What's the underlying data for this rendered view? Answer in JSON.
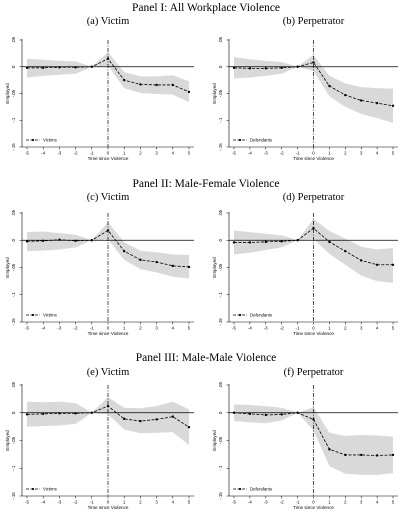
{
  "panels": [
    {
      "title": "Panel I: All Workplace Violence"
    },
    {
      "title": "Panel II: Male-Female Violence"
    },
    {
      "title": "Panel III: Male-Male Violence"
    }
  ],
  "chart_data": [
    {
      "id": "a",
      "type": "line",
      "title": "(a) Victim",
      "xlabel": "Time since Violence",
      "ylabel": "Employed",
      "x": [
        -5,
        -4,
        -3,
        -2,
        -1,
        0,
        1,
        2,
        3,
        4,
        5
      ],
      "ylim": [
        -0.15,
        0.05
      ],
      "yticks": [
        0.05,
        0,
        -0.05,
        -0.1,
        -0.15
      ],
      "ytick_labels": [
        ".05",
        "0",
        "-.05",
        "-.1",
        "-.15"
      ],
      "xticks": [
        -5,
        -4,
        -3,
        -2,
        -1,
        0,
        1,
        2,
        3,
        4,
        5
      ],
      "xtick_labels": [
        "-5",
        "-4",
        "-3",
        "-2",
        "-1",
        "0",
        "1",
        "2",
        "3",
        "4",
        "5"
      ],
      "reference_lines": {
        "x": 0,
        "y": 0
      },
      "series": [
        {
          "name": "Victims",
          "values": [
            -0.002,
            -0.002,
            -0.001,
            -0.001,
            0,
            0.015,
            -0.025,
            -0.033,
            -0.034,
            -0.034,
            -0.047
          ]
        }
      ],
      "ci_lower": [
        -0.02,
        -0.017,
        -0.015,
        -0.013,
        0,
        0.002,
        -0.04,
        -0.049,
        -0.051,
        -0.052,
        -0.066
      ],
      "ci_upper": [
        0.015,
        0.013,
        0.011,
        0.01,
        0,
        0.027,
        -0.01,
        -0.018,
        -0.018,
        -0.016,
        -0.027
      ],
      "legend_position": "bottom-left"
    },
    {
      "id": "b",
      "type": "line",
      "title": "(b) Perpetrator",
      "xlabel": "Time since Violence",
      "ylabel": "Employed",
      "x": [
        -5,
        -4,
        -3,
        -2,
        -1,
        0,
        1,
        2,
        3,
        4,
        5
      ],
      "ylim": [
        -0.15,
        0.05
      ],
      "yticks": [
        0.05,
        0,
        -0.05,
        -0.1,
        -0.15
      ],
      "ytick_labels": [
        ".05",
        "0",
        "-.05",
        "-.1",
        "-.15"
      ],
      "xticks": [
        -5,
        -4,
        -3,
        -2,
        -1,
        0,
        1,
        2,
        3,
        4,
        5
      ],
      "xtick_labels": [
        "-5",
        "-4",
        "-3",
        "-2",
        "-1",
        "0",
        "1",
        "2",
        "3",
        "4",
        "5"
      ],
      "reference_lines": {
        "x": 0,
        "y": 0
      },
      "series": [
        {
          "name": "Defendants",
          "values": [
            -0.002,
            -0.003,
            -0.003,
            -0.002,
            0,
            0.008,
            -0.036,
            -0.053,
            -0.063,
            -0.068,
            -0.073
          ]
        }
      ],
      "ci_lower": [
        -0.022,
        -0.02,
        -0.017,
        -0.013,
        0,
        -0.008,
        -0.055,
        -0.075,
        -0.088,
        -0.096,
        -0.105
      ],
      "ci_upper": [
        0.018,
        0.014,
        0.011,
        0.009,
        0,
        0.022,
        -0.017,
        -0.031,
        -0.038,
        -0.04,
        -0.041
      ],
      "legend_position": "bottom-left"
    },
    {
      "id": "c",
      "type": "line",
      "title": "(c) Victim",
      "xlabel": "Time since Violence",
      "ylabel": "Employed",
      "x": [
        -5,
        -4,
        -3,
        -2,
        -1,
        0,
        1,
        2,
        3,
        4,
        5
      ],
      "ylim": [
        -0.15,
        0.05
      ],
      "yticks": [
        0.05,
        0,
        -0.05,
        -0.1,
        -0.15
      ],
      "ytick_labels": [
        ".05",
        "0",
        "-.05",
        "-.1",
        "-.15"
      ],
      "xticks": [
        -5,
        -4,
        -3,
        -2,
        -1,
        0,
        1,
        2,
        3,
        4,
        5
      ],
      "xtick_labels": [
        "-5",
        "-4",
        "-3",
        "-2",
        "-1",
        "0",
        "1",
        "2",
        "3",
        "4",
        "5"
      ],
      "reference_lines": {
        "x": 0,
        "y": 0
      },
      "series": [
        {
          "name": "Victims",
          "values": [
            -0.002,
            -0.001,
            0.001,
            -0.001,
            0,
            0.018,
            -0.02,
            -0.036,
            -0.04,
            -0.047,
            -0.049
          ]
        }
      ],
      "ci_lower": [
        -0.02,
        -0.019,
        -0.017,
        -0.013,
        0,
        0.002,
        -0.036,
        -0.053,
        -0.059,
        -0.067,
        -0.07
      ],
      "ci_upper": [
        0.015,
        0.016,
        0.013,
        0.01,
        0,
        0.033,
        -0.004,
        -0.019,
        -0.022,
        -0.026,
        -0.027
      ],
      "legend_position": "bottom-left"
    },
    {
      "id": "d",
      "type": "line",
      "title": "(d) Perpetrator",
      "xlabel": "Time since Violence",
      "ylabel": "Employed",
      "x": [
        -5,
        -4,
        -3,
        -2,
        -1,
        0,
        1,
        2,
        3,
        4,
        5
      ],
      "ylim": [
        -0.15,
        0.05
      ],
      "yticks": [
        0.05,
        0,
        -0.05,
        -0.1,
        -0.15
      ],
      "ytick_labels": [
        ".05",
        "0",
        "-.05",
        "-.1",
        "-.15"
      ],
      "xticks": [
        -5,
        -4,
        -3,
        -2,
        -1,
        0,
        1,
        2,
        3,
        4,
        5
      ],
      "xtick_labels": [
        "-5",
        "-4",
        "-3",
        "-2",
        "-1",
        "0",
        "1",
        "2",
        "3",
        "4",
        "5"
      ],
      "reference_lines": {
        "x": 0,
        "y": 0
      },
      "series": [
        {
          "name": "Defendants",
          "values": [
            -0.004,
            -0.004,
            -0.003,
            -0.002,
            0,
            0.022,
            -0.003,
            -0.02,
            -0.037,
            -0.045,
            -0.045
          ]
        }
      ],
      "ci_lower": [
        -0.026,
        -0.023,
        -0.018,
        -0.013,
        0,
        0.002,
        -0.025,
        -0.045,
        -0.065,
        -0.075,
        -0.078
      ],
      "ci_upper": [
        0.018,
        0.015,
        0.012,
        0.009,
        0,
        0.039,
        0.017,
        0.003,
        -0.012,
        -0.017,
        -0.014
      ],
      "legend_position": "bottom-left"
    },
    {
      "id": "e",
      "type": "line",
      "title": "(e) Victim",
      "xlabel": "Time since Violence",
      "ylabel": "Employed",
      "x": [
        -5,
        -4,
        -3,
        -2,
        -1,
        0,
        1,
        2,
        3,
        4,
        5
      ],
      "ylim": [
        -0.15,
        0.05
      ],
      "yticks": [
        0.05,
        0,
        -0.05,
        -0.1,
        -0.15
      ],
      "ytick_labels": [
        ".05",
        "0",
        "-.05",
        "-.1",
        "-.15"
      ],
      "xticks": [
        -5,
        -4,
        -3,
        -2,
        -1,
        0,
        1,
        2,
        3,
        4,
        5
      ],
      "xtick_labels": [
        "-5",
        "-4",
        "-3",
        "-2",
        "-1",
        "0",
        "1",
        "2",
        "3",
        "4",
        "5"
      ],
      "reference_lines": {
        "x": 0,
        "y": 0
      },
      "series": [
        {
          "name": "Victims",
          "values": [
            -0.003,
            -0.002,
            -0.001,
            -0.001,
            0,
            0.012,
            -0.011,
            -0.015,
            -0.012,
            -0.007,
            -0.026
          ]
        }
      ],
      "ci_lower": [
        -0.025,
        -0.024,
        -0.023,
        -0.02,
        0,
        -0.003,
        -0.03,
        -0.037,
        -0.036,
        -0.035,
        -0.058
      ],
      "ci_upper": [
        0.02,
        0.019,
        0.02,
        0.017,
        0,
        0.028,
        0.009,
        0.008,
        0.012,
        0.02,
        0.006
      ],
      "legend_position": "bottom-left"
    },
    {
      "id": "f",
      "type": "line",
      "title": "(f) Perpetrator",
      "xlabel": "Time since Violence",
      "ylabel": "Employed",
      "x": [
        -5,
        -4,
        -3,
        -2,
        -1,
        0,
        1,
        2,
        3,
        4,
        5
      ],
      "ylim": [
        -0.15,
        0.05
      ],
      "yticks": [
        0.05,
        0,
        -0.05,
        -0.1,
        -0.15
      ],
      "ytick_labels": [
        ".05",
        "0",
        "-.05",
        "-.1",
        "-.15"
      ],
      "xticks": [
        -5,
        -4,
        -3,
        -2,
        -1,
        0,
        1,
        2,
        3,
        4,
        5
      ],
      "xtick_labels": [
        "-5",
        "-4",
        "-3",
        "-2",
        "-1",
        "0",
        "1",
        "2",
        "3",
        "4",
        "5"
      ],
      "reference_lines": {
        "x": 0,
        "y": 0
      },
      "series": [
        {
          "name": "Defendants",
          "values": [
            0,
            -0.002,
            -0.004,
            -0.003,
            0,
            -0.012,
            -0.066,
            -0.076,
            -0.076,
            -0.077,
            -0.076
          ]
        }
      ],
      "ci_lower": [
        -0.015,
        -0.017,
        -0.019,
        -0.014,
        0,
        -0.032,
        -0.096,
        -0.11,
        -0.112,
        -0.112,
        -0.109
      ],
      "ci_upper": [
        0.015,
        0.014,
        0.012,
        0.009,
        0,
        0.01,
        -0.036,
        -0.042,
        -0.04,
        -0.041,
        -0.043
      ],
      "legend_position": "bottom-left"
    }
  ]
}
